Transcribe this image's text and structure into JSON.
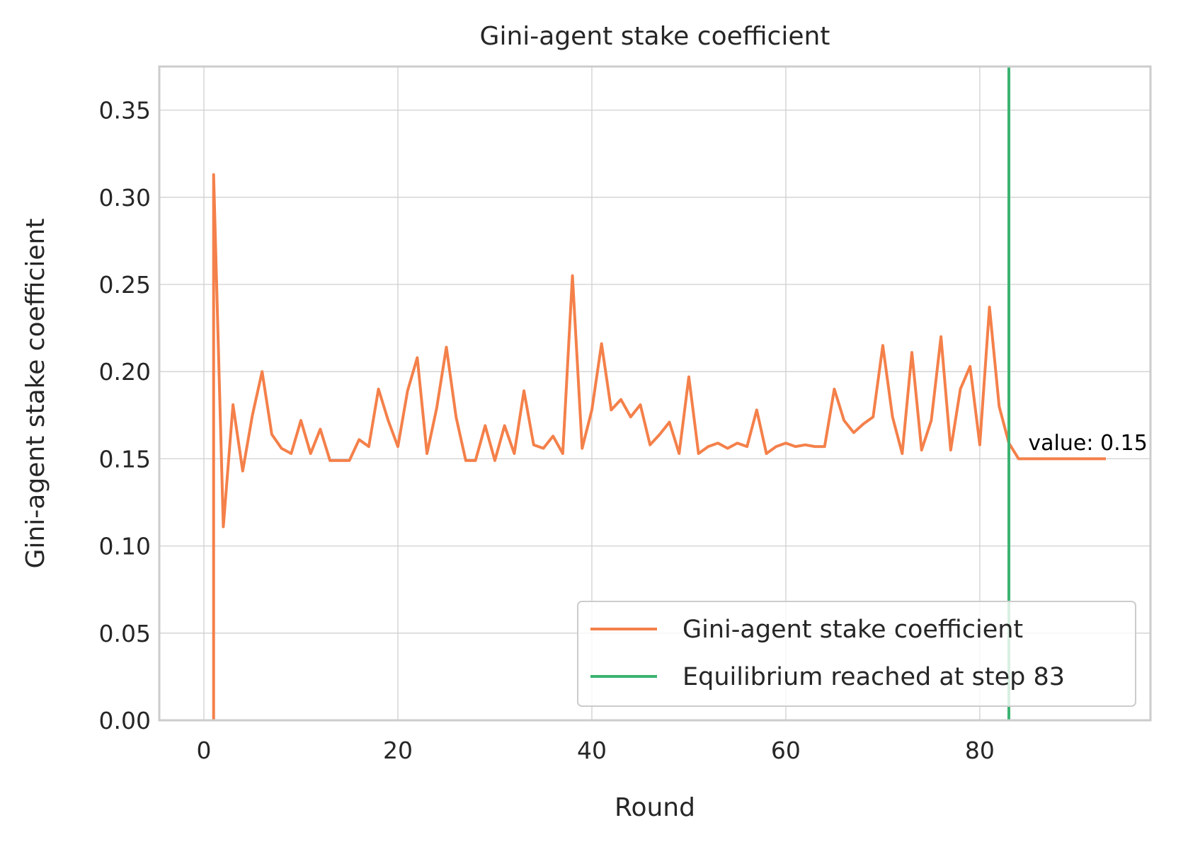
{
  "chart_data": {
    "type": "line",
    "title": "Gini-agent stake coefficient",
    "xlabel": "Round",
    "ylabel": "Gini-agent stake coefficient",
    "xlim": [
      -4.6,
      97.6
    ],
    "ylim": [
      0,
      0.375
    ],
    "xticks": [
      0,
      20,
      40,
      60,
      80
    ],
    "yticks": [
      0.0,
      0.05,
      0.1,
      0.15,
      0.2,
      0.25,
      0.3,
      0.35
    ],
    "grid": true,
    "legend_position": "lower-right",
    "series": [
      {
        "name": "Gini-agent stake coefficient",
        "color": "#f4804a",
        "x": [
          0,
          1,
          2,
          3,
          4,
          5,
          6,
          7,
          8,
          9,
          10,
          11,
          12,
          13,
          14,
          15,
          16,
          17,
          18,
          19,
          20,
          21,
          22,
          23,
          24,
          25,
          26,
          27,
          28,
          29,
          30,
          31,
          32,
          33,
          34,
          35,
          36,
          37,
          38,
          39,
          40,
          41,
          42,
          43,
          44,
          45,
          46,
          47,
          48,
          49,
          50,
          51,
          52,
          53,
          54,
          55,
          56,
          57,
          58,
          59,
          60,
          61,
          62,
          63,
          64,
          65,
          66,
          67,
          68,
          69,
          70,
          71,
          72,
          73,
          74,
          75,
          76,
          77,
          78,
          79,
          80,
          81,
          82,
          83,
          84,
          85,
          86,
          87,
          88,
          89,
          90,
          91,
          92,
          93
        ],
        "values": [
          null,
          0.313,
          0.111,
          0.181,
          0.143,
          0.175,
          0.2,
          0.164,
          0.156,
          0.153,
          0.172,
          0.153,
          0.167,
          0.149,
          0.149,
          0.149,
          0.161,
          0.157,
          0.19,
          0.172,
          0.157,
          0.189,
          0.208,
          0.153,
          0.179,
          0.214,
          0.174,
          0.149,
          0.149,
          0.169,
          0.149,
          0.169,
          0.153,
          0.189,
          0.158,
          0.156,
          0.163,
          0.153,
          0.255,
          0.156,
          0.178,
          0.216,
          0.178,
          0.184,
          0.174,
          0.181,
          0.158,
          0.164,
          0.171,
          0.153,
          0.197,
          0.153,
          0.157,
          0.159,
          0.156,
          0.159,
          0.157,
          0.178,
          0.153,
          0.157,
          0.159,
          0.157,
          0.158,
          0.157,
          0.157,
          0.19,
          0.172,
          0.165,
          0.17,
          0.174,
          0.215,
          0.174,
          0.153,
          0.211,
          0.155,
          0.172,
          0.22,
          0.155,
          0.19,
          0.203,
          0.158,
          0.237,
          0.18,
          0.159,
          0.15,
          0.15,
          0.15,
          0.15,
          0.15,
          0.15,
          0.15,
          0.15,
          0.15,
          0.15
        ]
      },
      {
        "name": "Equilibrium reached at step 83",
        "color": "#3cb371",
        "vline_x": 83
      }
    ],
    "annotation": {
      "text": "value: 0.15",
      "x": 85,
      "y": 0.155
    }
  }
}
